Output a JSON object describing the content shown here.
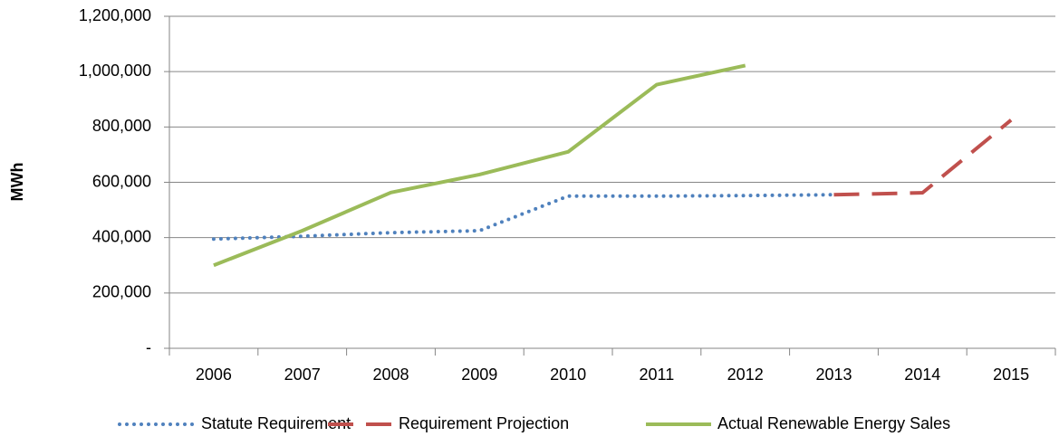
{
  "chart_data": {
    "type": "line",
    "y_label": "MWh",
    "categories": [
      "2006",
      "2007",
      "2008",
      "2009",
      "2010",
      "2011",
      "2012",
      "2013",
      "2014",
      "2015"
    ],
    "series": [
      {
        "name": "Statute Requirement",
        "color": "#4f81bd",
        "style": "dotted",
        "values": [
          395000,
          405000,
          418000,
          425000,
          550000,
          550000,
          552000,
          555000,
          null,
          null
        ]
      },
      {
        "name": "Requirement Projection",
        "color": "#c0504d",
        "style": "dashed",
        "values": [
          null,
          null,
          null,
          null,
          null,
          null,
          null,
          555000,
          562000,
          825000
        ]
      },
      {
        "name": "Actual Renewable Energy Sales",
        "color": "#9bbb59",
        "style": "solid",
        "values": [
          300000,
          425000,
          563000,
          628000,
          710000,
          953000,
          1022000,
          null,
          null,
          null
        ]
      }
    ],
    "ylim": [
      0,
      1200000
    ],
    "yticks": [
      {
        "value": 0,
        "label": "-"
      },
      {
        "value": 200000,
        "label": "200,000"
      },
      {
        "value": 400000,
        "label": "400,000"
      },
      {
        "value": 600000,
        "label": "600,000"
      },
      {
        "value": 800000,
        "label": "800,000"
      },
      {
        "value": 1000000,
        "label": "1,000,000"
      },
      {
        "value": 1200000,
        "label": "1,200,000"
      }
    ],
    "grid": true,
    "legend": "bottom"
  }
}
